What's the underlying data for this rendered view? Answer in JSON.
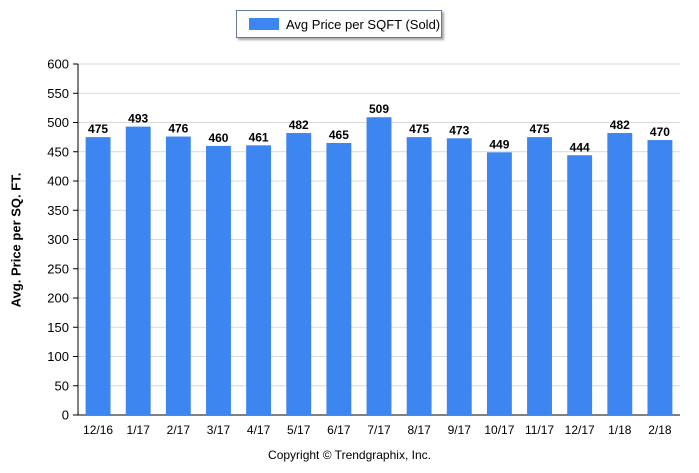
{
  "chart_data": {
    "type": "bar",
    "categories": [
      "12/16",
      "1/17",
      "2/17",
      "3/17",
      "4/17",
      "5/17",
      "6/17",
      "7/17",
      "8/17",
      "9/17",
      "10/17",
      "11/17",
      "12/17",
      "1/18",
      "2/18"
    ],
    "series": [
      {
        "name": "Avg Price per SQFT (Sold)",
        "values": [
          475,
          493,
          476,
          460,
          461,
          482,
          465,
          509,
          475,
          473,
          449,
          475,
          444,
          482,
          470
        ],
        "color": "#3d85f0"
      }
    ],
    "ylabel": "Avg. Price per SQ. FT.",
    "xlabel": "",
    "ylim": [
      0,
      600
    ],
    "yticks": [
      0,
      50,
      100,
      150,
      200,
      250,
      300,
      350,
      400,
      450,
      500,
      550,
      600
    ],
    "grid": true,
    "legend": "top-center",
    "data_labels": true
  },
  "footer": {
    "copyright": "Copyright © Trendgraphix, Inc."
  }
}
